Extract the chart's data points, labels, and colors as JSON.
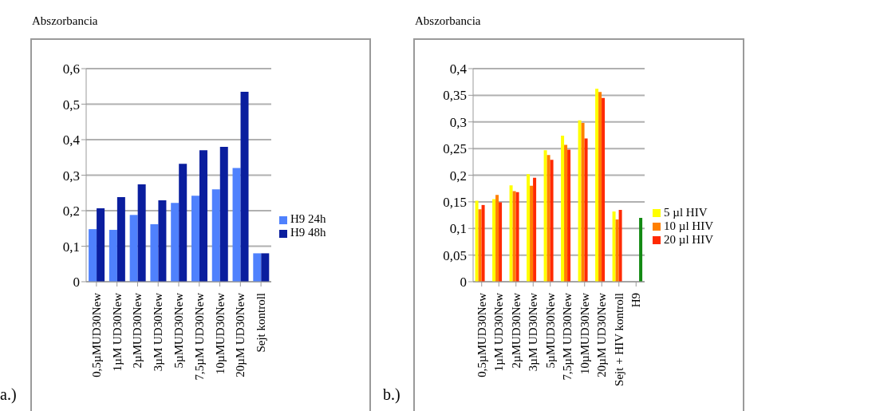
{
  "chart_data": [
    {
      "type": "bar",
      "ylabel": "Abszorbancia",
      "annotations": [
        "a.)"
      ],
      "categories": [
        "0,5µMUD30New",
        "1µM UD30New",
        "2µMUD30New",
        "3µM UD30New",
        "5µMUD30New",
        "7,5µM UD30New",
        "10µMUD30New",
        "20µM UD30New",
        "Sejt  kontroll"
      ],
      "series": [
        {
          "name": "H9 24h",
          "color": "#4f81fd",
          "values": [
            0.148,
            0.146,
            0.188,
            0.162,
            0.222,
            0.242,
            0.26,
            0.32,
            0.08
          ]
        },
        {
          "name": "H9 48h",
          "color": "#0a1e9e",
          "values": [
            0.207,
            0.238,
            0.274,
            0.229,
            0.332,
            0.37,
            0.38,
            0.535,
            0.08
          ]
        }
      ],
      "ylim": [
        0,
        0.6
      ],
      "yticks": [
        0,
        {
          "value": 0.1,
          "label": "0,1"
        },
        {
          "value": 0.2,
          "label": "0,2"
        },
        {
          "value": 0.3,
          "label": "0,3"
        },
        {
          "value": 0.4,
          "label": "0,4"
        },
        {
          "value": 0.5,
          "label": "0,5"
        },
        {
          "value": 0.6,
          "label": "0,6"
        }
      ],
      "grid": "y",
      "legend": "right"
    },
    {
      "type": "bar",
      "ylabel": "Abszorbancia",
      "annotations": [
        "b.)"
      ],
      "categories": [
        "0,5µMUD30New",
        "1µM UD30New",
        "2µMUD30New",
        "3µM UD30New",
        "5µMUD30New",
        "7,5µM UD30New",
        "10µMUD30New",
        "20µM UD30New",
        "Sejt + HIV kontroll",
        "H9"
      ],
      "series": [
        {
          "name": "5 µl HIV",
          "color": "#ffff00",
          "values": [
            0.152,
            0.155,
            0.181,
            0.202,
            0.247,
            0.274,
            0.303,
            0.362,
            0.132,
            null
          ]
        },
        {
          "name": "10 µl HIV",
          "color": "#ff7f00",
          "values": [
            0.136,
            0.163,
            0.17,
            0.18,
            0.238,
            0.257,
            0.298,
            0.356,
            0.117,
            null
          ]
        },
        {
          "name": "20 µl HIV",
          "color": "#ff2a00",
          "values": [
            0.144,
            0.149,
            0.168,
            0.195,
            0.229,
            0.248,
            0.269,
            0.345,
            0.135,
            null
          ]
        },
        {
          "color": "#138a13",
          "values": [
            null,
            null,
            null,
            null,
            null,
            null,
            null,
            null,
            null,
            0.12
          ]
        }
      ],
      "ylim": [
        0,
        0.4
      ],
      "yticks": [
        0,
        {
          "value": 0.05,
          "label": "0,05"
        },
        {
          "value": 0.1,
          "label": "0,1"
        },
        {
          "value": 0.15,
          "label": "0,15"
        },
        {
          "value": 0.2,
          "label": "0,2"
        },
        {
          "value": 0.25,
          "label": "0,25"
        },
        {
          "value": 0.3,
          "label": "0,3"
        },
        {
          "value": 0.35,
          "label": "0,35"
        },
        {
          "value": 0.4,
          "label": "0,4"
        }
      ],
      "grid": "y",
      "legend": "right"
    }
  ]
}
